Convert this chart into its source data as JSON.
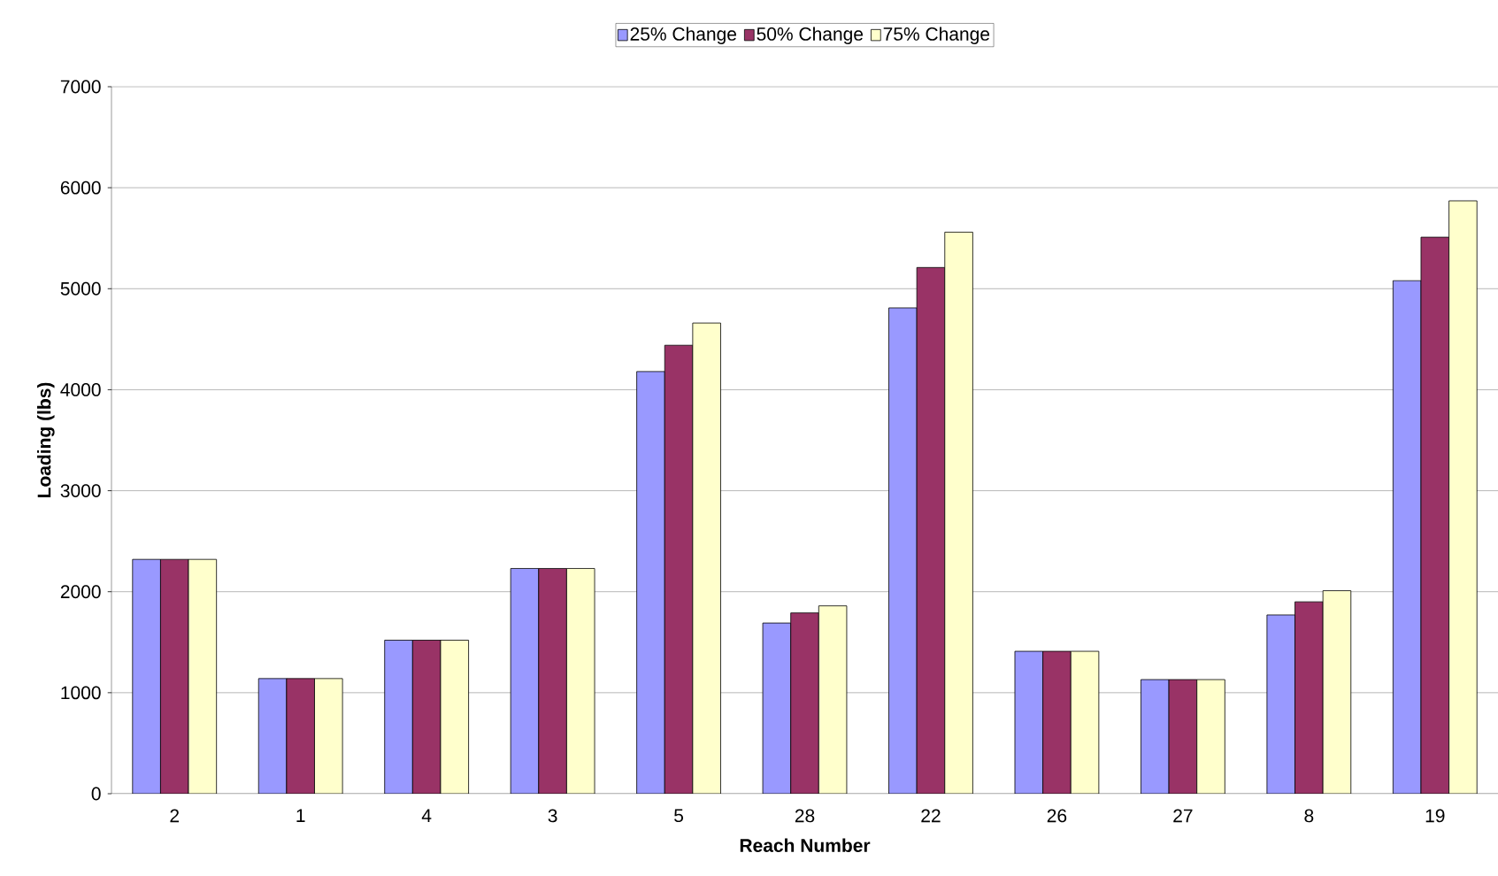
{
  "chart_data": {
    "type": "bar",
    "xlabel": "Reach Number",
    "ylabel": "Loading (lbs)",
    "categories": [
      "2",
      "1",
      "4",
      "3",
      "5",
      "28",
      "22",
      "26",
      "27",
      "8",
      "19"
    ],
    "series": [
      {
        "name": "25% Change",
        "color": "#9999ff",
        "values": [
          2320,
          1140,
          1520,
          2230,
          4180,
          1690,
          4810,
          1410,
          1130,
          1770,
          5080
        ]
      },
      {
        "name": "50% Change",
        "color": "#993366",
        "values": [
          2320,
          1140,
          1520,
          2230,
          4440,
          1790,
          5210,
          1410,
          1130,
          1900,
          5510
        ]
      },
      {
        "name": "75% Change",
        "color": "#ffffcc",
        "values": [
          2320,
          1140,
          1520,
          2230,
          4660,
          1860,
          5560,
          1410,
          1130,
          2010,
          5870
        ]
      }
    ],
    "ylim": [
      0,
      7000
    ],
    "yticks": [
      0,
      1000,
      2000,
      3000,
      4000,
      5000,
      6000,
      7000
    ],
    "grid": "y",
    "legend": "top"
  }
}
